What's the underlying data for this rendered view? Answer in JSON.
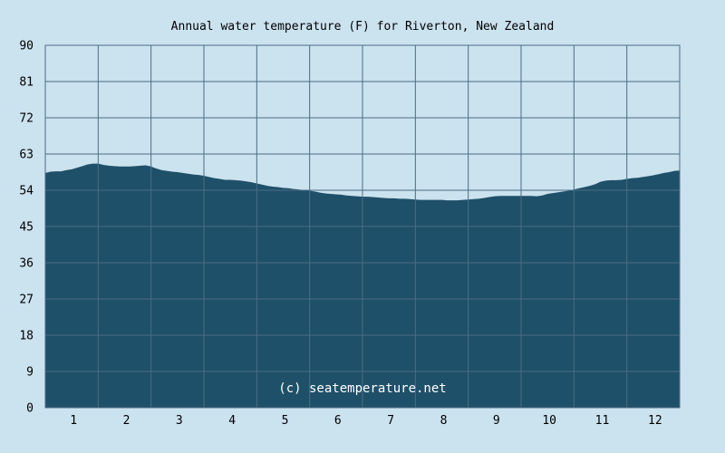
{
  "chart_data": {
    "type": "area",
    "title": "Annual water temperature (F) for Riverton, New Zealand",
    "watermark": "(c) seatemperature.net",
    "xlabel": "",
    "ylabel": "",
    "categories": [
      "1",
      "2",
      "3",
      "4",
      "5",
      "6",
      "7",
      "8",
      "9",
      "10",
      "11",
      "12"
    ],
    "yticks": [
      "0",
      "9",
      "18",
      "27",
      "36",
      "45",
      "54",
      "63",
      "72",
      "81",
      "90"
    ],
    "ylim": [
      0,
      90
    ],
    "xlim": [
      0.5,
      12.5
    ],
    "grid": true,
    "series": [
      {
        "x": [
          0.5,
          0.6,
          0.7,
          0.8,
          0.9,
          1.0,
          1.1,
          1.2,
          1.3,
          1.4,
          1.5,
          1.6,
          1.7,
          1.8,
          1.9,
          2.0,
          2.1,
          2.2,
          2.3,
          2.4,
          2.5,
          2.6,
          2.7,
          2.8,
          2.9,
          3.0,
          3.1,
          3.2,
          3.3,
          3.4,
          3.5,
          3.6,
          3.7,
          3.8,
          3.9,
          4.0,
          4.1,
          4.2,
          4.3,
          4.4,
          4.5,
          4.6,
          4.7,
          4.8,
          4.9,
          5.0,
          5.1,
          5.2,
          5.3,
          5.4,
          5.5,
          5.6,
          5.7,
          5.8,
          5.9,
          6.0,
          6.1,
          6.2,
          6.3,
          6.4,
          6.5,
          6.6,
          6.7,
          6.8,
          6.9,
          7.0,
          7.1,
          7.2,
          7.3,
          7.4,
          7.5,
          7.6,
          7.7,
          7.8,
          7.9,
          8.0,
          8.1,
          8.2,
          8.3,
          8.4,
          8.5,
          8.6,
          8.7,
          8.8,
          8.9,
          9.0,
          9.1,
          9.2,
          9.3,
          9.4,
          9.5,
          9.6,
          9.7,
          9.8,
          9.9,
          10.0,
          10.1,
          10.2,
          10.3,
          10.4,
          10.5,
          10.6,
          10.7,
          10.8,
          10.9,
          11.0,
          11.1,
          11.2,
          11.3,
          11.4,
          11.5,
          11.6,
          11.7,
          11.8,
          11.9,
          12.0,
          12.1,
          12.2,
          12.3,
          12.4,
          12.5
        ],
        "values": [
          58.3,
          58.6,
          58.7,
          58.7,
          59.0,
          59.2,
          59.6,
          60.0,
          60.4,
          60.6,
          60.6,
          60.3,
          60.1,
          60.0,
          59.9,
          59.9,
          59.9,
          60.0,
          60.1,
          60.2,
          59.9,
          59.4,
          59.0,
          58.8,
          58.6,
          58.5,
          58.3,
          58.1,
          57.9,
          57.8,
          57.6,
          57.3,
          57.0,
          56.8,
          56.6,
          56.6,
          56.5,
          56.4,
          56.2,
          56.0,
          55.7,
          55.4,
          55.1,
          54.9,
          54.8,
          54.6,
          54.5,
          54.3,
          54.2,
          54.0,
          53.9,
          53.7,
          53.4,
          53.2,
          53.1,
          53.0,
          52.9,
          52.7,
          52.6,
          52.5,
          52.4,
          52.4,
          52.3,
          52.2,
          52.1,
          52.0,
          52.0,
          51.9,
          51.9,
          51.8,
          51.7,
          51.6,
          51.6,
          51.6,
          51.6,
          51.6,
          51.5,
          51.5,
          51.5,
          51.6,
          51.7,
          51.8,
          51.9,
          52.1,
          52.3,
          52.5,
          52.6,
          52.6,
          52.6,
          52.6,
          52.6,
          52.6,
          52.6,
          52.5,
          52.7,
          53.1,
          53.3,
          53.5,
          53.7,
          53.9,
          54.2,
          54.5,
          54.8,
          55.1,
          55.5,
          56.1,
          56.4,
          56.5,
          56.5,
          56.6,
          56.8,
          57.0,
          57.1,
          57.3,
          57.5,
          57.7,
          58.0,
          58.3,
          58.5,
          58.8,
          58.9
        ]
      }
    ],
    "colors": {
      "background": "#cbe2ef",
      "area_fill": "#1f5069",
      "grid": "#4b6c84"
    }
  }
}
